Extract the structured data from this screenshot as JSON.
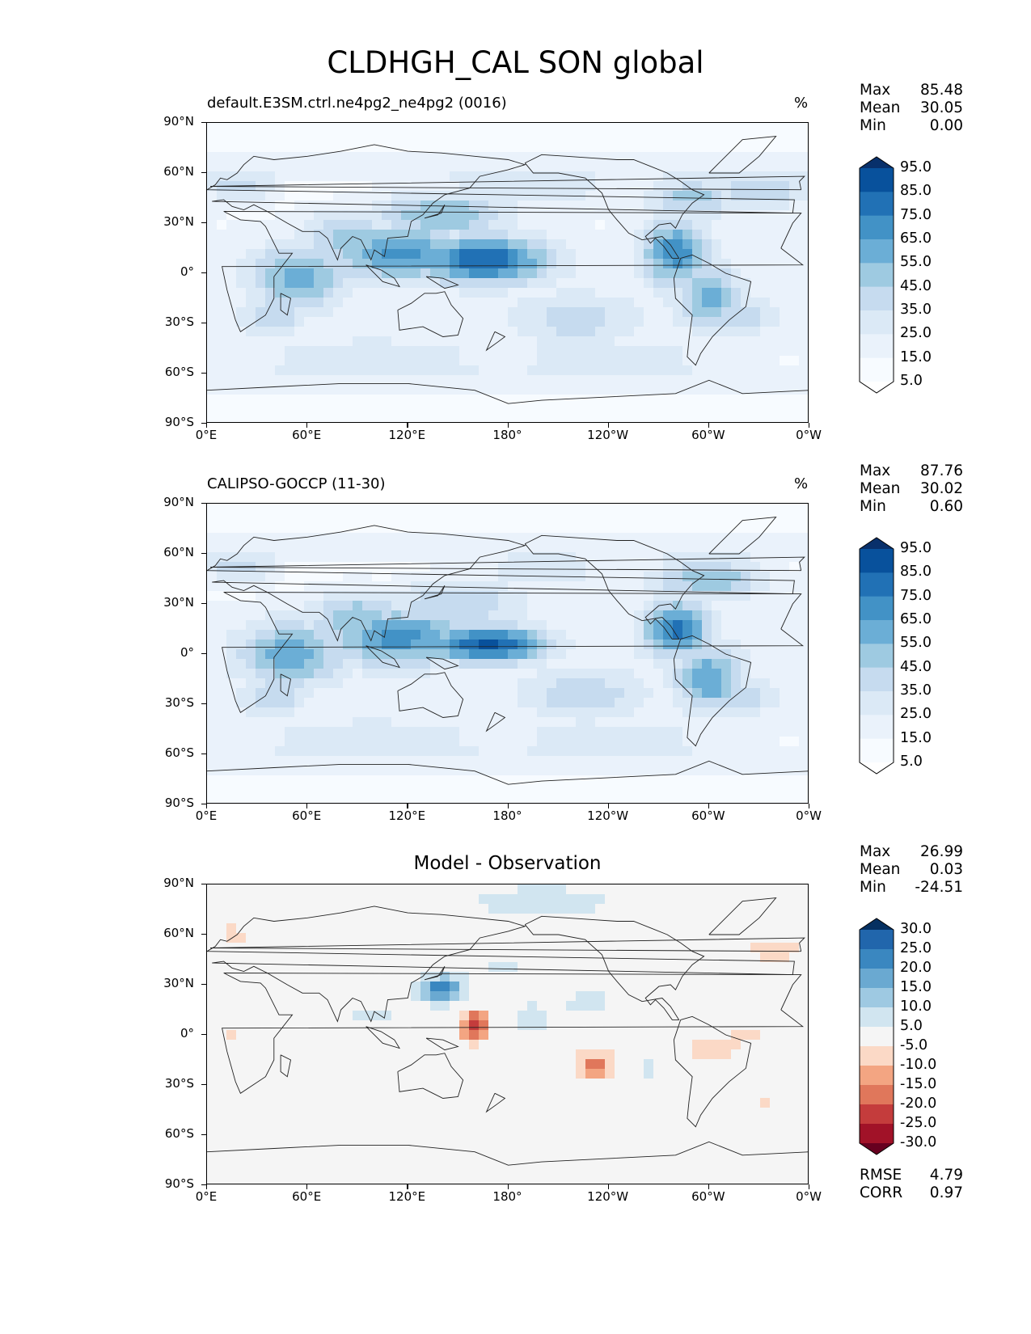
{
  "title": "CLDHGH_CAL SON global",
  "chart_data": [
    {
      "type": "heatmap",
      "panel": "model",
      "title": "default.E3SM.ctrl.ne4pg2_ne4pg2 (0016)",
      "units": "%",
      "stats": {
        "max_label": "Max",
        "max": "85.48",
        "mean_label": "Mean",
        "mean": "30.05",
        "min_label": "Min",
        "min": "0.00"
      },
      "colorbar": {
        "levels": [
          "95.0",
          "85.0",
          "75.0",
          "65.0",
          "55.0",
          "45.0",
          "35.0",
          "25.0",
          "15.0",
          "5.0"
        ],
        "colors": [
          "#08306b",
          "#08519c",
          "#2171b5",
          "#4292c6",
          "#6baed6",
          "#9ecae1",
          "#c6dbef",
          "#dbe9f6",
          "#eaf2fb",
          "#f7fbff",
          "#ffffff"
        ]
      },
      "xlabel_ticks": [
        "0°E",
        "60°E",
        "120°E",
        "180°",
        "120°W",
        "60°W",
        "0°W"
      ],
      "ylabel_ticks": [
        "90°N",
        "60°N",
        "30°N",
        "0°",
        "30°S",
        "60°S",
        "90°S"
      ],
      "field_blobs": [
        {
          "lon": 165,
          "lat": 8,
          "value": 85,
          "slon": 28,
          "slat": 10
        },
        {
          "lon": 115,
          "lat": 12,
          "value": 68,
          "slon": 30,
          "slat": 12
        },
        {
          "lon": 140,
          "lat": 35,
          "value": 55,
          "slon": 30,
          "slat": 10
        },
        {
          "lon": 55,
          "lat": -2,
          "value": 60,
          "slon": 20,
          "slat": 14
        },
        {
          "lon": 85,
          "lat": 20,
          "value": 52,
          "slon": 20,
          "slat": 12
        },
        {
          "lon": 280,
          "lat": 12,
          "value": 72,
          "slon": 14,
          "slat": 14
        },
        {
          "lon": 300,
          "lat": -15,
          "value": 60,
          "slon": 14,
          "slat": 14
        },
        {
          "lon": 320,
          "lat": -25,
          "value": 45,
          "slon": 14,
          "slat": 8
        },
        {
          "lon": 290,
          "lat": 45,
          "value": 50,
          "slon": 20,
          "slat": 8
        },
        {
          "lon": 330,
          "lat": 50,
          "value": 45,
          "slon": 25,
          "slat": 8
        },
        {
          "lon": 20,
          "lat": 52,
          "value": 45,
          "slon": 14,
          "slat": 6
        },
        {
          "lon": 220,
          "lat": -28,
          "value": 40,
          "slon": 30,
          "slat": 12
        },
        {
          "lon": 100,
          "lat": -50,
          "value": 32,
          "slon": 60,
          "slat": 10
        },
        {
          "lon": 240,
          "lat": -50,
          "value": 30,
          "slon": 60,
          "slat": 10
        },
        {
          "lon": 190,
          "lat": 50,
          "value": 35,
          "slon": 40,
          "slat": 8
        },
        {
          "lon": 40,
          "lat": -25,
          "value": 45,
          "slon": 14,
          "slat": 10
        }
      ]
    },
    {
      "type": "heatmap",
      "panel": "observation",
      "title": "CALIPSO-GOCCP (11-30)",
      "units": "%",
      "stats": {
        "max_label": "Max",
        "max": "87.76",
        "mean_label": "Mean",
        "mean": "30.02",
        "min_label": "Min",
        "min": "0.60"
      },
      "colorbar": {
        "levels": [
          "95.0",
          "85.0",
          "75.0",
          "65.0",
          "55.0",
          "45.0",
          "35.0",
          "25.0",
          "15.0",
          "5.0"
        ],
        "colors": [
          "#08306b",
          "#08519c",
          "#2171b5",
          "#4292c6",
          "#6baed6",
          "#9ecae1",
          "#c6dbef",
          "#dbe9f6",
          "#eaf2fb",
          "#f7fbff",
          "#ffffff"
        ]
      },
      "xlabel_ticks": [
        "0°E",
        "60°E",
        "120°E",
        "180°",
        "120°W",
        "60°W",
        "0°W"
      ],
      "ylabel_ticks": [
        "90°N",
        "60°N",
        "30°N",
        "0°",
        "30°S",
        "60°S",
        "90°S"
      ],
      "field_blobs": [
        {
          "lon": 168,
          "lat": 6,
          "value": 88,
          "slon": 25,
          "slat": 8
        },
        {
          "lon": 115,
          "lat": 10,
          "value": 70,
          "slon": 30,
          "slat": 12
        },
        {
          "lon": 150,
          "lat": 30,
          "value": 45,
          "slon": 30,
          "slat": 10
        },
        {
          "lon": 50,
          "lat": 0,
          "value": 62,
          "slon": 22,
          "slat": 14
        },
        {
          "lon": 90,
          "lat": 20,
          "value": 55,
          "slon": 20,
          "slat": 12
        },
        {
          "lon": 280,
          "lat": 15,
          "value": 78,
          "slon": 14,
          "slat": 12
        },
        {
          "lon": 300,
          "lat": -15,
          "value": 65,
          "slon": 14,
          "slat": 14
        },
        {
          "lon": 320,
          "lat": -25,
          "value": 45,
          "slon": 14,
          "slat": 8
        },
        {
          "lon": 300,
          "lat": 45,
          "value": 55,
          "slon": 25,
          "slat": 8
        },
        {
          "lon": 20,
          "lat": 52,
          "value": 45,
          "slon": 14,
          "slat": 6
        },
        {
          "lon": 225,
          "lat": -25,
          "value": 42,
          "slon": 28,
          "slat": 12
        },
        {
          "lon": 100,
          "lat": -50,
          "value": 32,
          "slon": 60,
          "slat": 10
        },
        {
          "lon": 240,
          "lat": -50,
          "value": 30,
          "slon": 60,
          "slat": 10
        },
        {
          "lon": 200,
          "lat": 50,
          "value": 30,
          "slon": 40,
          "slat": 8
        },
        {
          "lon": 40,
          "lat": -25,
          "value": 45,
          "slon": 14,
          "slat": 10
        }
      ]
    },
    {
      "type": "heatmap",
      "panel": "difference",
      "title": "Model - Observation",
      "units": "",
      "stats": {
        "max_label": "Max",
        "max": "26.99",
        "mean_label": "Mean",
        "mean": "0.03",
        "min_label": "Min",
        "min": "-24.51"
      },
      "metrics": {
        "rmse_label": "RMSE",
        "rmse": "4.79",
        "corr_label": "CORR",
        "corr": "0.97"
      },
      "colorbar": {
        "levels": [
          "30.0",
          "25.0",
          "20.0",
          "15.0",
          "10.0",
          "5.0",
          "-5.0",
          "-10.0",
          "-15.0",
          "-20.0",
          "-25.0",
          "-30.0"
        ],
        "colors": [
          "#053061",
          "#2166ac",
          "#3a87c0",
          "#6aa9d1",
          "#9ec9e2",
          "#d1e5f0",
          "#f5f5f5",
          "#fbd9c6",
          "#f3a582",
          "#e0775b",
          "#c43c3c",
          "#a11228",
          "#67001f"
        ]
      },
      "xlabel_ticks": [
        "0°E",
        "60°E",
        "120°E",
        "180°",
        "120°W",
        "60°W",
        "0°W"
      ],
      "ylabel_ticks": [
        "90°N",
        "60°N",
        "30°N",
        "0°",
        "30°S",
        "60°S",
        "90°S"
      ],
      "field_blobs": [
        {
          "lon": 140,
          "lat": 27,
          "value": 24,
          "slon": 10,
          "slat": 6
        },
        {
          "lon": 160,
          "lat": 5,
          "value": -24,
          "slon": 6,
          "slat": 7
        },
        {
          "lon": 232,
          "lat": -18,
          "value": -18,
          "slon": 8,
          "slat": 6
        },
        {
          "lon": 200,
          "lat": 80,
          "value": 8,
          "slon": 40,
          "slat": 8
        },
        {
          "lon": 195,
          "lat": 10,
          "value": 10,
          "slon": 8,
          "slat": 6
        },
        {
          "lon": 15,
          "lat": 60,
          "value": -8,
          "slon": 6,
          "slat": 5
        },
        {
          "lon": 340,
          "lat": 50,
          "value": -8,
          "slon": 15,
          "slat": 5
        },
        {
          "lon": 300,
          "lat": -10,
          "value": -10,
          "slon": 10,
          "slat": 6
        },
        {
          "lon": 325,
          "lat": 0,
          "value": -7,
          "slon": 10,
          "slat": 6
        },
        {
          "lon": 15,
          "lat": 0,
          "value": -8,
          "slon": 4,
          "slat": 5
        },
        {
          "lon": 100,
          "lat": 12,
          "value": 7,
          "slon": 15,
          "slat": 4
        },
        {
          "lon": 228,
          "lat": 20,
          "value": 7,
          "slon": 15,
          "slat": 6
        },
        {
          "lon": 255,
          "lat": 20,
          "value": -6,
          "slon": 6,
          "slat": 5
        },
        {
          "lon": 265,
          "lat": -20,
          "value": 6,
          "slon": 6,
          "slat": 6
        },
        {
          "lon": 335,
          "lat": -40,
          "value": -7,
          "slon": 4,
          "slat": 4
        },
        {
          "lon": 175,
          "lat": 40,
          "value": 6,
          "slon": 15,
          "slat": 5
        }
      ]
    }
  ]
}
